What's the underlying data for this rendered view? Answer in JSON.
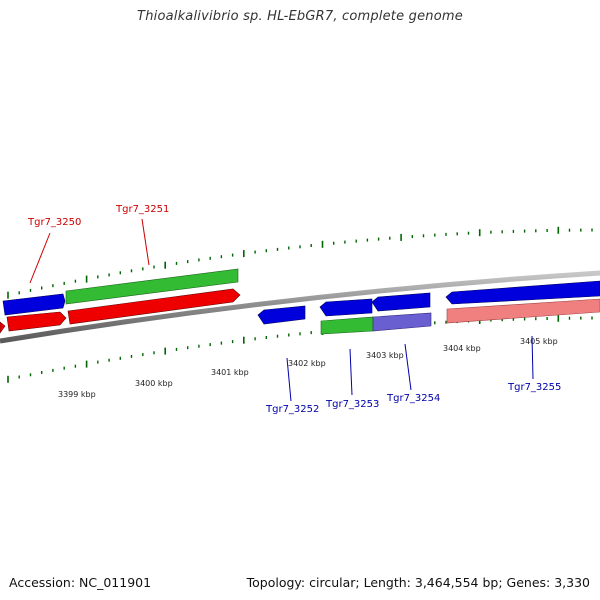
{
  "title": "Thioalkalivibrio sp. HL-EbGR7, complete genome",
  "footer": {
    "accession": "Accession: NC_011901",
    "summary": "Topology: circular; Length: 3,464,554 bp; Genes: 3,330"
  },
  "colors": {
    "forward_gene": "#0000dd",
    "reverse_gene": "#ee0000",
    "forward_highlight": "#33bb33",
    "reverse_highlight": "#ee0000",
    "blue_light": "#6a5fd0",
    "pink": "#f08080",
    "tick": "#006600",
    "label_red": "#cc0000",
    "label_blue": "#0000aa"
  },
  "scale_labels": [
    "3399 kbp",
    "3400 kbp",
    "3401 kbp",
    "3402 kbp",
    "3403 kbp",
    "3404 kbp",
    "3405 kbp"
  ],
  "gene_labels": [
    {
      "text": "Tgr7_3250",
      "color": "red"
    },
    {
      "text": "Tgr7_3251",
      "color": "red"
    },
    {
      "text": "Tgr7_3252",
      "color": "blue"
    },
    {
      "text": "Tgr7_3253",
      "color": "blue"
    },
    {
      "text": "Tgr7_3254",
      "color": "blue"
    },
    {
      "text": "Tgr7_3255",
      "color": "blue"
    }
  ]
}
